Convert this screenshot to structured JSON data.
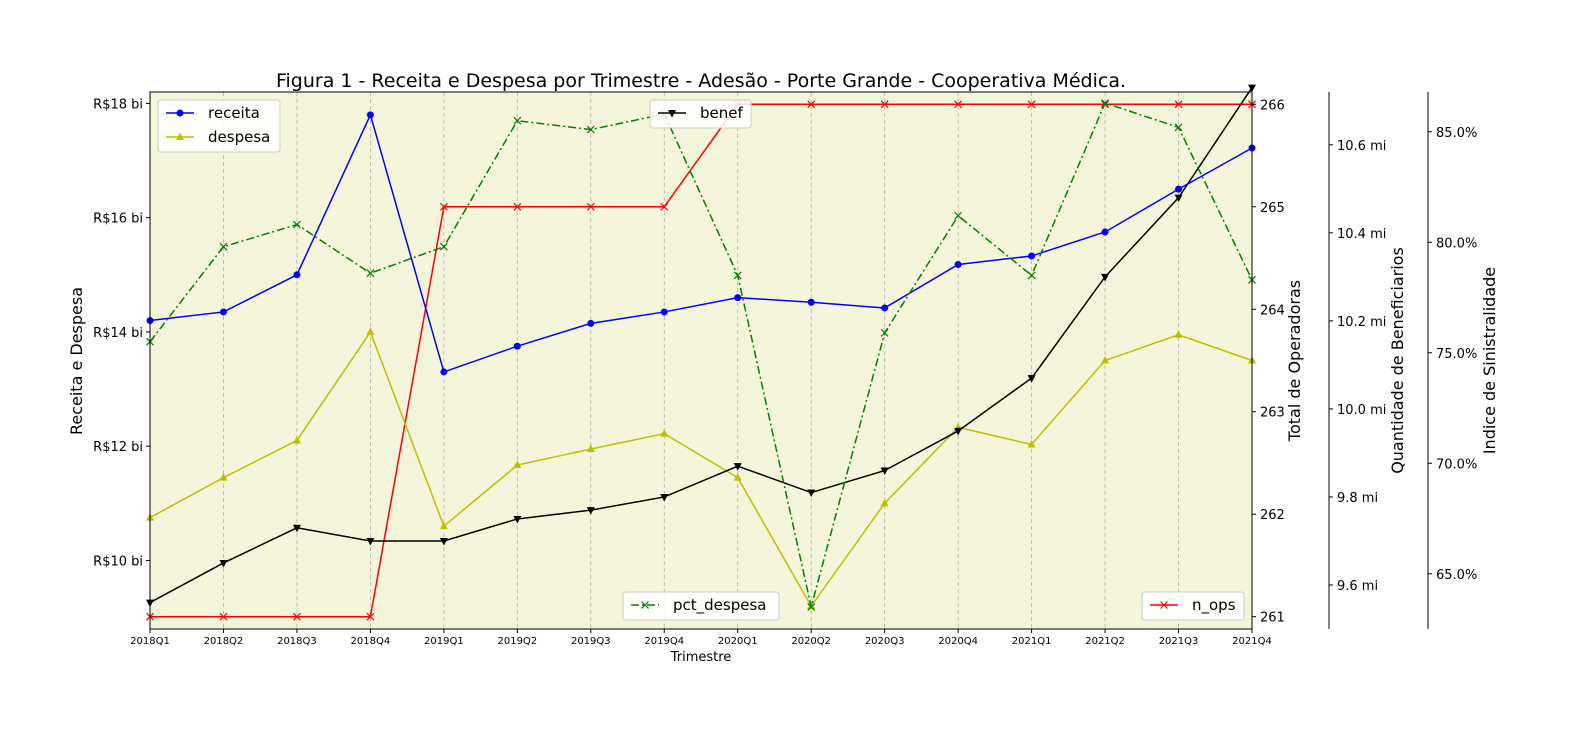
{
  "chart_data": {
    "type": "line",
    "title": "Figura 1 - Receita e Despesa por Trimestre - Adesão - Porte Grande - Cooperativa Médica.",
    "xlabel": "Trimestre",
    "categories": [
      "2018Q1",
      "2018Q2",
      "2018Q3",
      "2018Q4",
      "2019Q1",
      "2019Q2",
      "2019Q3",
      "2019Q4",
      "2020Q1",
      "2020Q2",
      "2020Q3",
      "2020Q4",
      "2021Q1",
      "2021Q2",
      "2021Q3",
      "2021Q4"
    ],
    "background_color": "#f5f5dc",
    "grid": "vertical dashed",
    "axes": {
      "left": {
        "label": "Receita e Despesa",
        "ylim": [
          8.8,
          18.2
        ],
        "ticks": [
          10,
          12,
          14,
          16,
          18
        ],
        "tick_labels": [
          "R$10 bi",
          "R$12 bi",
          "R$14 bi",
          "R$16 bi",
          "R$18 bi"
        ]
      },
      "right1": {
        "label": "Total de Operadoras",
        "ylim": [
          260.88,
          266.12
        ],
        "ticks": [
          261,
          262,
          263,
          264,
          265,
          266
        ],
        "tick_labels": [
          "261",
          "262",
          "263",
          "264",
          "265",
          "266"
        ]
      },
      "right2": {
        "label": "Quantidade de Beneficiarios",
        "ylim": [
          9.5,
          10.72
        ],
        "ticks": [
          9.6,
          9.8,
          10.0,
          10.2,
          10.4,
          10.6
        ],
        "tick_labels": [
          "9.6 mi",
          "9.8 mi",
          "10.0 mi",
          "10.2 mi",
          "10.4 mi",
          "10.6 mi"
        ]
      },
      "right3": {
        "label": "Indice de Sinistralidade",
        "ylim": [
          62.5,
          86.8
        ],
        "ticks": [
          65,
          70,
          75,
          80,
          85
        ],
        "tick_labels": [
          "65.0%",
          "70.0%",
          "75.0%",
          "80.0%",
          "85.0%"
        ]
      }
    },
    "series": [
      {
        "name": "receita",
        "axis": "left",
        "color": "#0000ff",
        "marker": "circle",
        "linestyle": "solid",
        "values": [
          14.2,
          14.35,
          15.0,
          17.8,
          13.3,
          13.75,
          14.15,
          14.35,
          14.6,
          14.52,
          14.42,
          15.18,
          15.33,
          15.75,
          16.5,
          17.22
        ]
      },
      {
        "name": "despesa",
        "axis": "left",
        "color": "#bfbf00",
        "marker": "triangle-up",
        "linestyle": "solid",
        "values": [
          10.75,
          11.45,
          12.1,
          14.0,
          10.6,
          11.67,
          11.95,
          12.22,
          11.45,
          9.2,
          11.0,
          12.33,
          12.03,
          13.5,
          13.95,
          13.5
        ]
      },
      {
        "name": "n_ops",
        "axis": "right1",
        "color": "#ff0000",
        "marker": "x",
        "linestyle": "solid",
        "values": [
          261,
          261,
          261,
          261,
          265,
          265,
          265,
          265,
          266,
          266,
          266,
          266,
          266,
          266,
          266,
          266
        ]
      },
      {
        "name": "benef",
        "axis": "right2",
        "color": "#000000",
        "marker": "triangle-down",
        "linestyle": "solid",
        "values": [
          9.56,
          9.65,
          9.73,
          9.7,
          9.7,
          9.75,
          9.77,
          9.8,
          9.87,
          9.81,
          9.86,
          9.95,
          10.07,
          10.3,
          10.48,
          10.73
        ]
      },
      {
        "name": "pct_despesa",
        "axis": "right3",
        "color": "#008000",
        "marker": "x",
        "linestyle": "dashdot",
        "values": [
          75.5,
          79.8,
          80.8,
          78.6,
          79.8,
          85.5,
          85.1,
          85.8,
          78.5,
          63.5,
          75.9,
          81.2,
          78.5,
          86.3,
          85.2,
          78.3
        ]
      }
    ],
    "legends": [
      {
        "position": "upper-left",
        "entries": [
          "receita",
          "despesa"
        ]
      },
      {
        "position": "upper-center",
        "entries": [
          "benef"
        ]
      },
      {
        "position": "lower-center",
        "entries": [
          "pct_despesa"
        ]
      },
      {
        "position": "lower-right",
        "entries": [
          "n_ops"
        ]
      }
    ]
  }
}
